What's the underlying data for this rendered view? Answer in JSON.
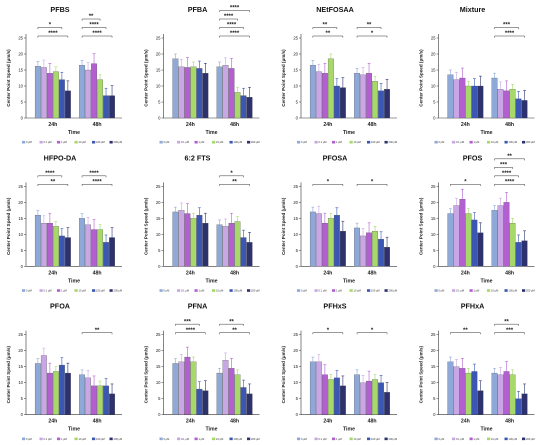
{
  "y_axis_label": "Center Point Speed (μm/s)",
  "x_axis_label": "Time",
  "groups": [
    "24h",
    "48h"
  ],
  "legend": [
    "0 μM",
    "0.1 μM",
    "1 μM",
    "10 μM",
    "100 μM",
    "200 μM"
  ],
  "series_colors": [
    "#8ea8d8",
    "#c9a6e4",
    "#b25fd0",
    "#a6d86a",
    "#3b57b3",
    "#2d326e"
  ],
  "y_ticks": [
    0,
    5,
    10,
    15,
    20,
    25
  ],
  "chart_data": [
    {
      "type": "bar",
      "title": "PFBS",
      "xlabel": "Time",
      "ylabel": "Center Point Speed (μm/s)",
      "ylim": [
        0,
        25
      ],
      "categories": [
        "24h",
        "48h"
      ],
      "series": [
        {
          "name": "0 μM",
          "values": [
            16.2,
            16.5
          ]
        },
        {
          "name": "0.1 μM",
          "values": [
            15.8,
            15.0
          ]
        },
        {
          "name": "1 μM",
          "values": [
            14.0,
            17.0
          ]
        },
        {
          "name": "10 μM",
          "values": [
            14.5,
            12.0
          ]
        },
        {
          "name": "100 μM",
          "values": [
            12.0,
            7.0
          ]
        },
        {
          "name": "200 μM",
          "values": [
            8.5,
            7.0
          ]
        }
      ],
      "annotations": {
        "24h": [
          "****",
          "*"
        ],
        "48h": [
          "****",
          "****",
          "**"
        ]
      }
    },
    {
      "type": "bar",
      "title": "PFBA",
      "xlabel": "Time",
      "ylabel": "Center Point Speed (μm/s)",
      "ylim": [
        0,
        25
      ],
      "categories": [
        "24h",
        "48h"
      ],
      "series": [
        {
          "name": "0 μM",
          "values": [
            18.5,
            16.0
          ]
        },
        {
          "name": "0.1 μM",
          "values": [
            16.0,
            16.5
          ]
        },
        {
          "name": "1 μM",
          "values": [
            15.8,
            15.5
          ]
        },
        {
          "name": "10 μM",
          "values": [
            16.0,
            8.0
          ]
        },
        {
          "name": "100 μM",
          "values": [
            15.5,
            7.0
          ]
        },
        {
          "name": "200 μM",
          "values": [
            14.0,
            6.5
          ]
        }
      ],
      "annotations": {
        "24h": [],
        "48h": [
          "****",
          "****",
          "****",
          "****"
        ]
      }
    },
    {
      "type": "bar",
      "title": "NEtFOSAA",
      "xlabel": "Time",
      "ylabel": "Center Point Speed (μm/s)",
      "ylim": [
        0,
        25
      ],
      "categories": [
        "24h",
        "48h"
      ],
      "series": [
        {
          "name": "0 μM",
          "values": [
            16.5,
            14.0
          ]
        },
        {
          "name": "0.1 μM",
          "values": [
            14.5,
            13.5
          ]
        },
        {
          "name": "1 μM",
          "values": [
            14.0,
            14.0
          ]
        },
        {
          "name": "10 μM",
          "values": [
            18.5,
            11.5
          ]
        },
        {
          "name": "100 μM",
          "values": [
            10.0,
            8.5
          ]
        },
        {
          "name": "200 μM",
          "values": [
            9.5,
            9.0
          ]
        }
      ],
      "annotations": {
        "24h": [
          "**",
          "**"
        ],
        "48h": [
          "*",
          "**"
        ]
      }
    },
    {
      "type": "bar",
      "title": "Mixture",
      "xlabel": "Time",
      "ylabel": "Center Point Speed (μm/s)",
      "ylim": [
        0,
        25
      ],
      "categories": [
        "24h",
        "48h"
      ],
      "series": [
        {
          "name": "0 μM",
          "values": [
            13.5,
            12.5
          ]
        },
        {
          "name": "0.1 μM",
          "values": [
            12.0,
            9.0
          ]
        },
        {
          "name": "1 μM",
          "values": [
            12.5,
            8.5
          ]
        },
        {
          "name": "10 μM",
          "values": [
            10.0,
            9.0
          ]
        },
        {
          "name": "100 μM",
          "values": [
            10.0,
            6.0
          ]
        },
        {
          "name": "200 μM",
          "values": [
            10.0,
            5.5
          ]
        }
      ],
      "annotations": {
        "24h": [],
        "48h": [
          "****",
          "***"
        ]
      }
    },
    {
      "type": "bar",
      "title": "HFPO-DA",
      "xlabel": "Time",
      "ylabel": "Center Point Speed (μm/s)",
      "ylim": [
        0,
        25
      ],
      "categories": [
        "24h",
        "48h"
      ],
      "series": [
        {
          "name": "0 μM",
          "values": [
            16.0,
            15.0
          ]
        },
        {
          "name": "0.1 μM",
          "values": [
            13.5,
            13.0
          ]
        },
        {
          "name": "1 μM",
          "values": [
            13.5,
            11.5
          ]
        },
        {
          "name": "10 μM",
          "values": [
            12.5,
            11.5
          ]
        },
        {
          "name": "100 μM",
          "values": [
            9.5,
            7.5
          ]
        },
        {
          "name": "200 μM",
          "values": [
            9.0,
            9.0
          ]
        }
      ],
      "annotations": {
        "24h": [
          "**",
          "****"
        ],
        "48h": [
          "****",
          "****"
        ]
      }
    },
    {
      "type": "bar",
      "title": "6:2 FTS",
      "xlabel": "Time",
      "ylabel": "Center Point Speed (μm/s)",
      "ylim": [
        0,
        25
      ],
      "categories": [
        "24h",
        "48h"
      ],
      "series": [
        {
          "name": "0 μM",
          "values": [
            17.0,
            13.0
          ]
        },
        {
          "name": "0.1 μM",
          "values": [
            17.5,
            12.5
          ]
        },
        {
          "name": "1 μM",
          "values": [
            16.5,
            13.5
          ]
        },
        {
          "name": "10 μM",
          "values": [
            15.0,
            14.0
          ]
        },
        {
          "name": "100 μM",
          "values": [
            16.0,
            9.0
          ]
        },
        {
          "name": "200 μM",
          "values": [
            13.5,
            7.5
          ]
        }
      ],
      "annotations": {
        "24h": [],
        "48h": [
          "**",
          "*"
        ]
      }
    },
    {
      "type": "bar",
      "title": "PFOSA",
      "xlabel": "Time",
      "ylabel": "Center Point Speed (μm/s)",
      "ylim": [
        0,
        25
      ],
      "categories": [
        "24h",
        "48h"
      ],
      "series": [
        {
          "name": "0 μM",
          "values": [
            17.0,
            12.0
          ]
        },
        {
          "name": "0.1 μM",
          "values": [
            16.5,
            9.5
          ]
        },
        {
          "name": "1 μM",
          "values": [
            13.5,
            10.5
          ]
        },
        {
          "name": "10 μM",
          "values": [
            15.0,
            11.0
          ]
        },
        {
          "name": "100 μM",
          "values": [
            16.0,
            8.5
          ]
        },
        {
          "name": "200 μM",
          "values": [
            11.0,
            6.0
          ]
        }
      ],
      "annotations": {
        "24h": [
          "*"
        ],
        "48h": [
          "*"
        ]
      }
    },
    {
      "type": "bar",
      "title": "PFOS",
      "xlabel": "Time",
      "ylabel": "Center Point Speed (μm/s)",
      "ylim": [
        0,
        25
      ],
      "categories": [
        "24h",
        "48h"
      ],
      "series": [
        {
          "name": "0 μM",
          "values": [
            16.5,
            17.5
          ]
        },
        {
          "name": "0.1 μM",
          "values": [
            19.0,
            19.0
          ]
        },
        {
          "name": "1 μM",
          "values": [
            21.0,
            20.0
          ]
        },
        {
          "name": "10 μM",
          "values": [
            16.5,
            13.5
          ]
        },
        {
          "name": "100 μM",
          "values": [
            14.5,
            7.5
          ]
        },
        {
          "name": "200 μM",
          "values": [
            10.5,
            8.0
          ]
        }
      ],
      "annotations": {
        "24h": [
          "*"
        ],
        "48h": [
          "****",
          "****",
          "***",
          "**"
        ]
      }
    },
    {
      "type": "bar",
      "title": "PFOA",
      "xlabel": "Time",
      "ylabel": "Center Point Speed (μm/s)",
      "ylim": [
        0,
        25
      ],
      "categories": [
        "24h",
        "48h"
      ],
      "series": [
        {
          "name": "0 μM",
          "values": [
            16.0,
            12.5
          ]
        },
        {
          "name": "0.1 μM",
          "values": [
            18.5,
            11.5
          ]
        },
        {
          "name": "1 μM",
          "values": [
            13.0,
            9.0
          ]
        },
        {
          "name": "10 μM",
          "values": [
            13.5,
            9.0
          ]
        },
        {
          "name": "100 μM",
          "values": [
            15.5,
            9.0
          ]
        },
        {
          "name": "200 μM",
          "values": [
            13.0,
            6.5
          ]
        }
      ],
      "annotations": {
        "24h": [],
        "48h": [
          "**"
        ]
      }
    },
    {
      "type": "bar",
      "title": "PFNA",
      "xlabel": "Time",
      "ylabel": "Center Point Speed (μm/s)",
      "ylim": [
        0,
        25
      ],
      "categories": [
        "24h",
        "48h"
      ],
      "series": [
        {
          "name": "0 μM",
          "values": [
            16.0,
            13.0
          ]
        },
        {
          "name": "0.1 μM",
          "values": [
            16.5,
            17.0
          ]
        },
        {
          "name": "1 μM",
          "values": [
            18.0,
            14.5
          ]
        },
        {
          "name": "10 μM",
          "values": [
            16.5,
            12.5
          ]
        },
        {
          "name": "100 μM",
          "values": [
            8.0,
            8.5
          ]
        },
        {
          "name": "200 μM",
          "values": [
            7.5,
            6.5
          ]
        }
      ],
      "annotations": {
        "24h": [
          "****",
          "***"
        ],
        "48h": [
          "**",
          "**"
        ]
      }
    },
    {
      "type": "bar",
      "title": "PFHxS",
      "xlabel": "Time",
      "ylabel": "Center Point Speed (μm/s)",
      "ylim": [
        0,
        25
      ],
      "categories": [
        "24h",
        "48h"
      ],
      "series": [
        {
          "name": "0 μM",
          "values": [
            16.5,
            12.5
          ]
        },
        {
          "name": "0.1 μM",
          "values": [
            16.5,
            10.0
          ]
        },
        {
          "name": "1 μM",
          "values": [
            12.5,
            10.5
          ]
        },
        {
          "name": "10 μM",
          "values": [
            11.0,
            11.0
          ]
        },
        {
          "name": "100 μM",
          "values": [
            11.5,
            10.0
          ]
        },
        {
          "name": "200 μM",
          "values": [
            9.0,
            7.0
          ]
        }
      ],
      "annotations": {
        "24h": [
          "*"
        ],
        "48h": [
          "*"
        ]
      }
    },
    {
      "type": "bar",
      "title": "PFHxA",
      "xlabel": "Time",
      "ylabel": "Center Point Speed (μm/s)",
      "ylim": [
        0,
        25
      ],
      "categories": [
        "24h",
        "48h"
      ],
      "series": [
        {
          "name": "0 μM",
          "values": [
            16.5,
            13.0
          ]
        },
        {
          "name": "0.1 μM",
          "values": [
            15.0,
            12.5
          ]
        },
        {
          "name": "1 μM",
          "values": [
            14.5,
            13.5
          ]
        },
        {
          "name": "10 μM",
          "values": [
            13.0,
            12.5
          ]
        },
        {
          "name": "100 μM",
          "values": [
            13.5,
            5.0
          ]
        },
        {
          "name": "200 μM",
          "values": [
            7.5,
            6.5
          ]
        }
      ],
      "annotations": {
        "24h": [
          "**"
        ],
        "48h": [
          "***",
          "**"
        ]
      }
    }
  ]
}
